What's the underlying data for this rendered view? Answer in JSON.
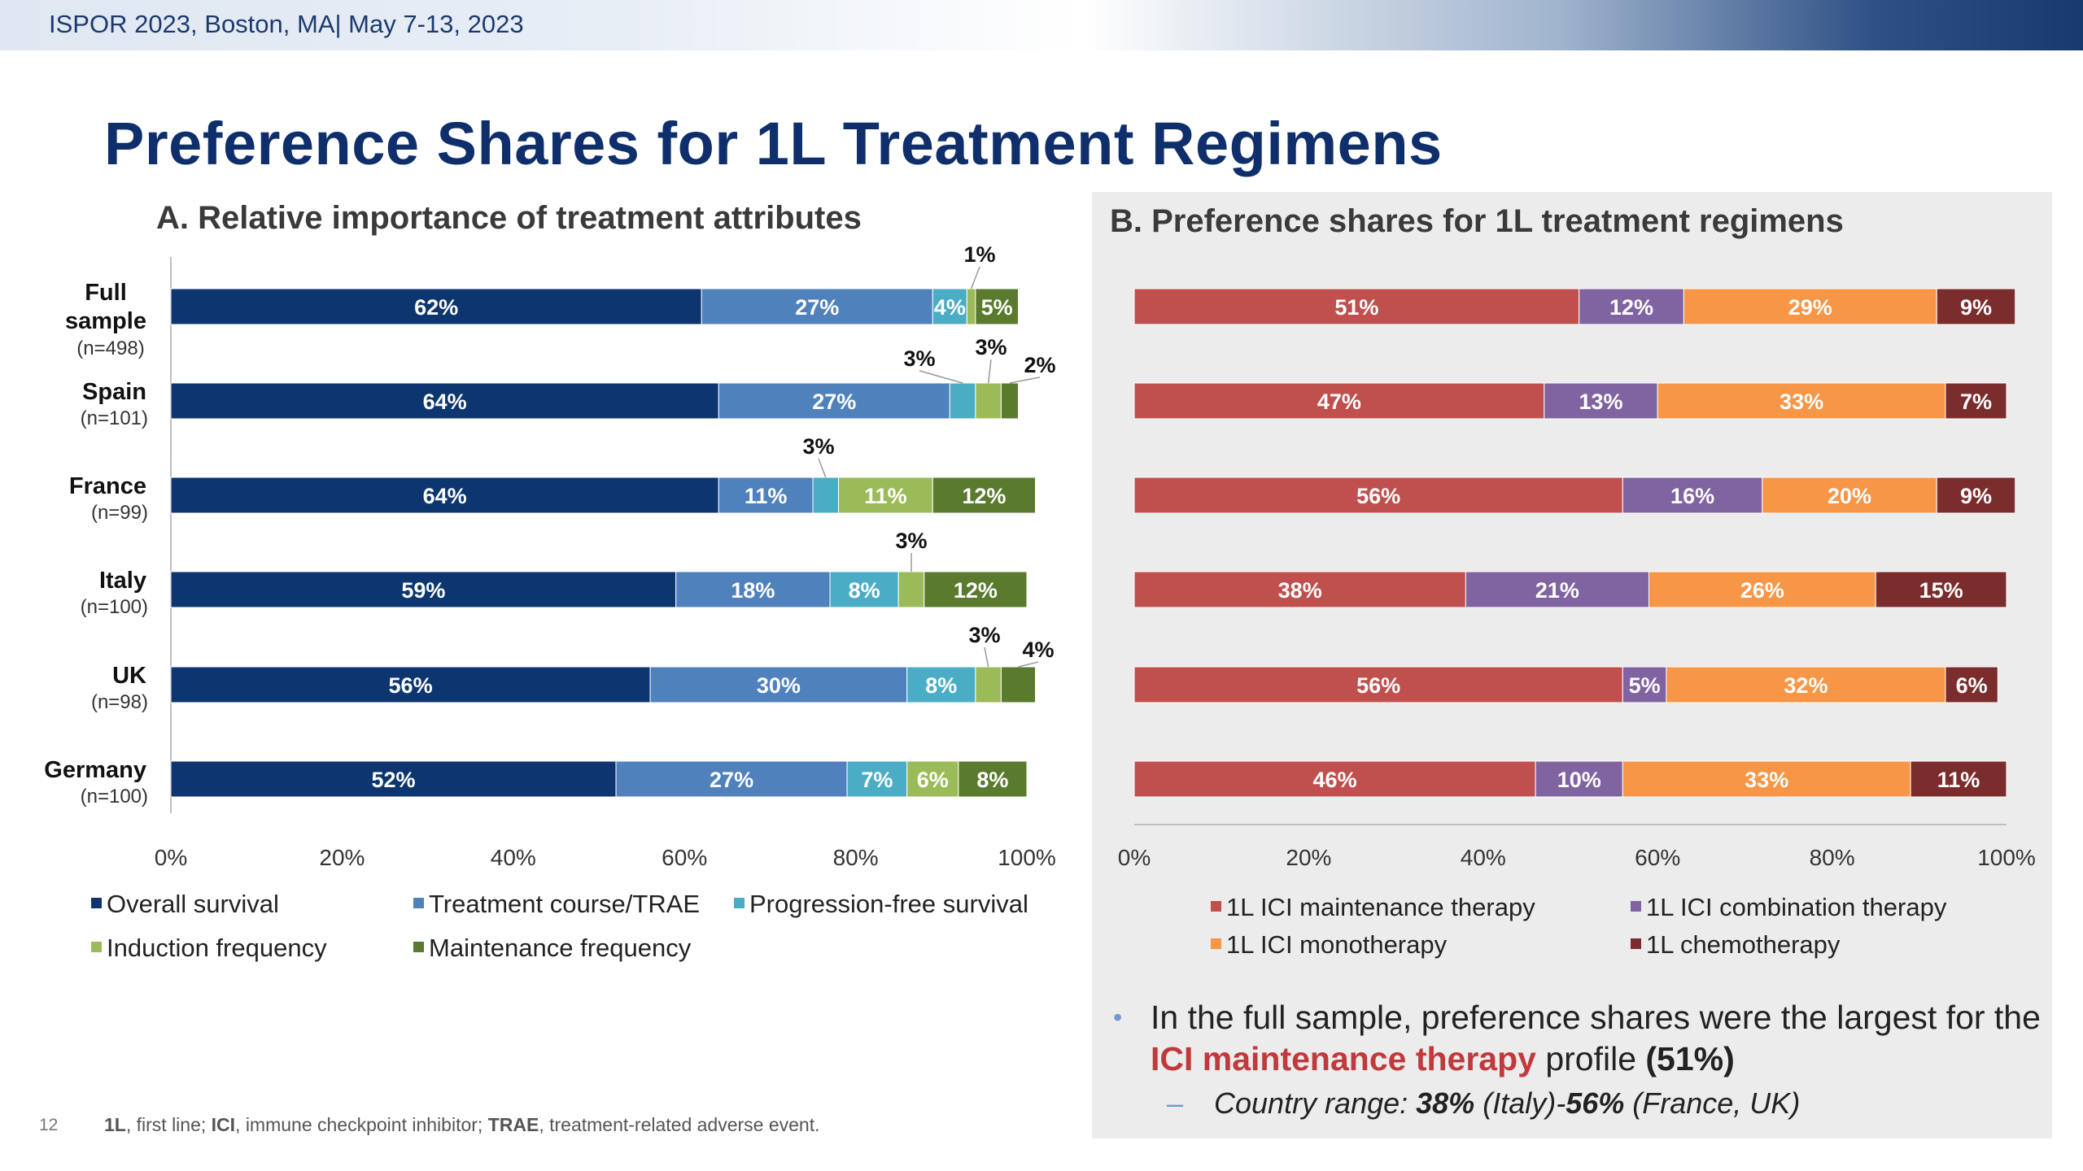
{
  "header": {
    "conference": "ISPOR 2023, Boston, MA| May 7-13, 2023"
  },
  "slide": {
    "title": "Preference Shares for 1L Treatment Regimens",
    "page_number": "12"
  },
  "panel_a": {
    "title": "A. Relative importance of treatment attributes"
  },
  "panel_b": {
    "title": "B. Preference shares for 1L treatment regimens"
  },
  "colors": {
    "overall_survival": "#0d3670",
    "treatment_course": "#4f81bd",
    "pfs": "#4bacc6",
    "induction": "#9bbb59",
    "maintenance": "#5a7a2e",
    "ici_maintenance": "#c0504d",
    "ici_combination": "#8064a2",
    "ici_monotherapy": "#f79646",
    "chemotherapy": "#7b2c2c"
  },
  "chart_data": [
    {
      "type": "bar",
      "orientation": "horizontal",
      "stacked": true,
      "title": "A. Relative importance of treatment attributes",
      "categories": [
        {
          "name": "Full sample",
          "n": "(n=498)"
        },
        {
          "name": "Spain",
          "n": "(n=101)"
        },
        {
          "name": "France",
          "n": "(n=99)"
        },
        {
          "name": "Italy",
          "n": "(n=100)"
        },
        {
          "name": "UK",
          "n": "(n=98)"
        },
        {
          "name": "Germany",
          "n": "(n=100)"
        }
      ],
      "series": [
        {
          "name": "Overall survival",
          "color": "#0d3670",
          "values": [
            62,
            64,
            64,
            59,
            56,
            52
          ]
        },
        {
          "name": "Treatment course/TRAE",
          "color": "#4f81bd",
          "values": [
            27,
            27,
            11,
            18,
            30,
            27
          ]
        },
        {
          "name": "Progression-free survival",
          "color": "#4bacc6",
          "values": [
            4,
            3,
            3,
            8,
            8,
            7
          ]
        },
        {
          "name": "Induction frequency",
          "color": "#9bbb59",
          "values": [
            1,
            3,
            11,
            3,
            3,
            6
          ]
        },
        {
          "name": "Maintenance frequency",
          "color": "#5a7a2e",
          "values": [
            5,
            2,
            12,
            12,
            4,
            8
          ]
        }
      ],
      "xlim": [
        0,
        100
      ],
      "xticks": [
        "0%",
        "20%",
        "40%",
        "60%",
        "80%",
        "100%"
      ],
      "legend_position": "bottom"
    },
    {
      "type": "bar",
      "orientation": "horizontal",
      "stacked": true,
      "title": "B. Preference shares for 1L treatment regimens",
      "categories": [
        "Full sample",
        "Spain",
        "France",
        "Italy",
        "UK",
        "Germany"
      ],
      "series": [
        {
          "name": "1L ICI maintenance therapy",
          "color": "#c0504d",
          "values": [
            51,
            47,
            56,
            38,
            56,
            46
          ]
        },
        {
          "name": "1L ICI combination therapy",
          "color": "#8064a2",
          "values": [
            12,
            13,
            16,
            21,
            5,
            10
          ]
        },
        {
          "name": "1L ICI monotherapy",
          "color": "#f79646",
          "values": [
            29,
            33,
            20,
            26,
            32,
            33
          ]
        },
        {
          "name": "1L chemotherapy",
          "color": "#7b2c2c",
          "values": [
            9,
            7,
            9,
            15,
            6,
            11
          ]
        }
      ],
      "xlim": [
        0,
        100
      ],
      "xticks": [
        "0%",
        "20%",
        "40%",
        "60%",
        "80%",
        "100%"
      ],
      "legend_position": "bottom"
    }
  ],
  "legend_a": [
    {
      "label": "Overall survival",
      "color": "#0d3670"
    },
    {
      "label": "Treatment course/TRAE",
      "color": "#4f81bd"
    },
    {
      "label": "Progression-free survival",
      "color": "#4bacc6"
    },
    {
      "label": "Induction frequency",
      "color": "#9bbb59"
    },
    {
      "label": "Maintenance frequency",
      "color": "#5a7a2e"
    }
  ],
  "legend_b": [
    {
      "label": "1L ICI maintenance therapy",
      "color": "#c0504d"
    },
    {
      "label": "1L ICI combination therapy",
      "color": "#8064a2"
    },
    {
      "label": "1L ICI monotherapy",
      "color": "#f79646"
    },
    {
      "label": "1L chemotherapy",
      "color": "#7b2c2c"
    }
  ],
  "summary": {
    "line1_pre": "In the full sample, preference shares were the largest for the ",
    "line1_highlight": "ICI maintenance therapy",
    "line1_mid": " profile ",
    "line1_value": "(51%)",
    "line2_pre": "Country range:  ",
    "line2_v1": "38%",
    "line2_mid1": " (Italy)-",
    "line2_v2": "56%",
    "line2_mid2": " (France, UK)"
  },
  "footnote": {
    "t1": "1L",
    "d1": ", first line; ",
    "t2": "ICI",
    "d2": ", immune checkpoint inhibitor; ",
    "t3": "TRAE",
    "d3": ", treatment-related adverse event."
  }
}
